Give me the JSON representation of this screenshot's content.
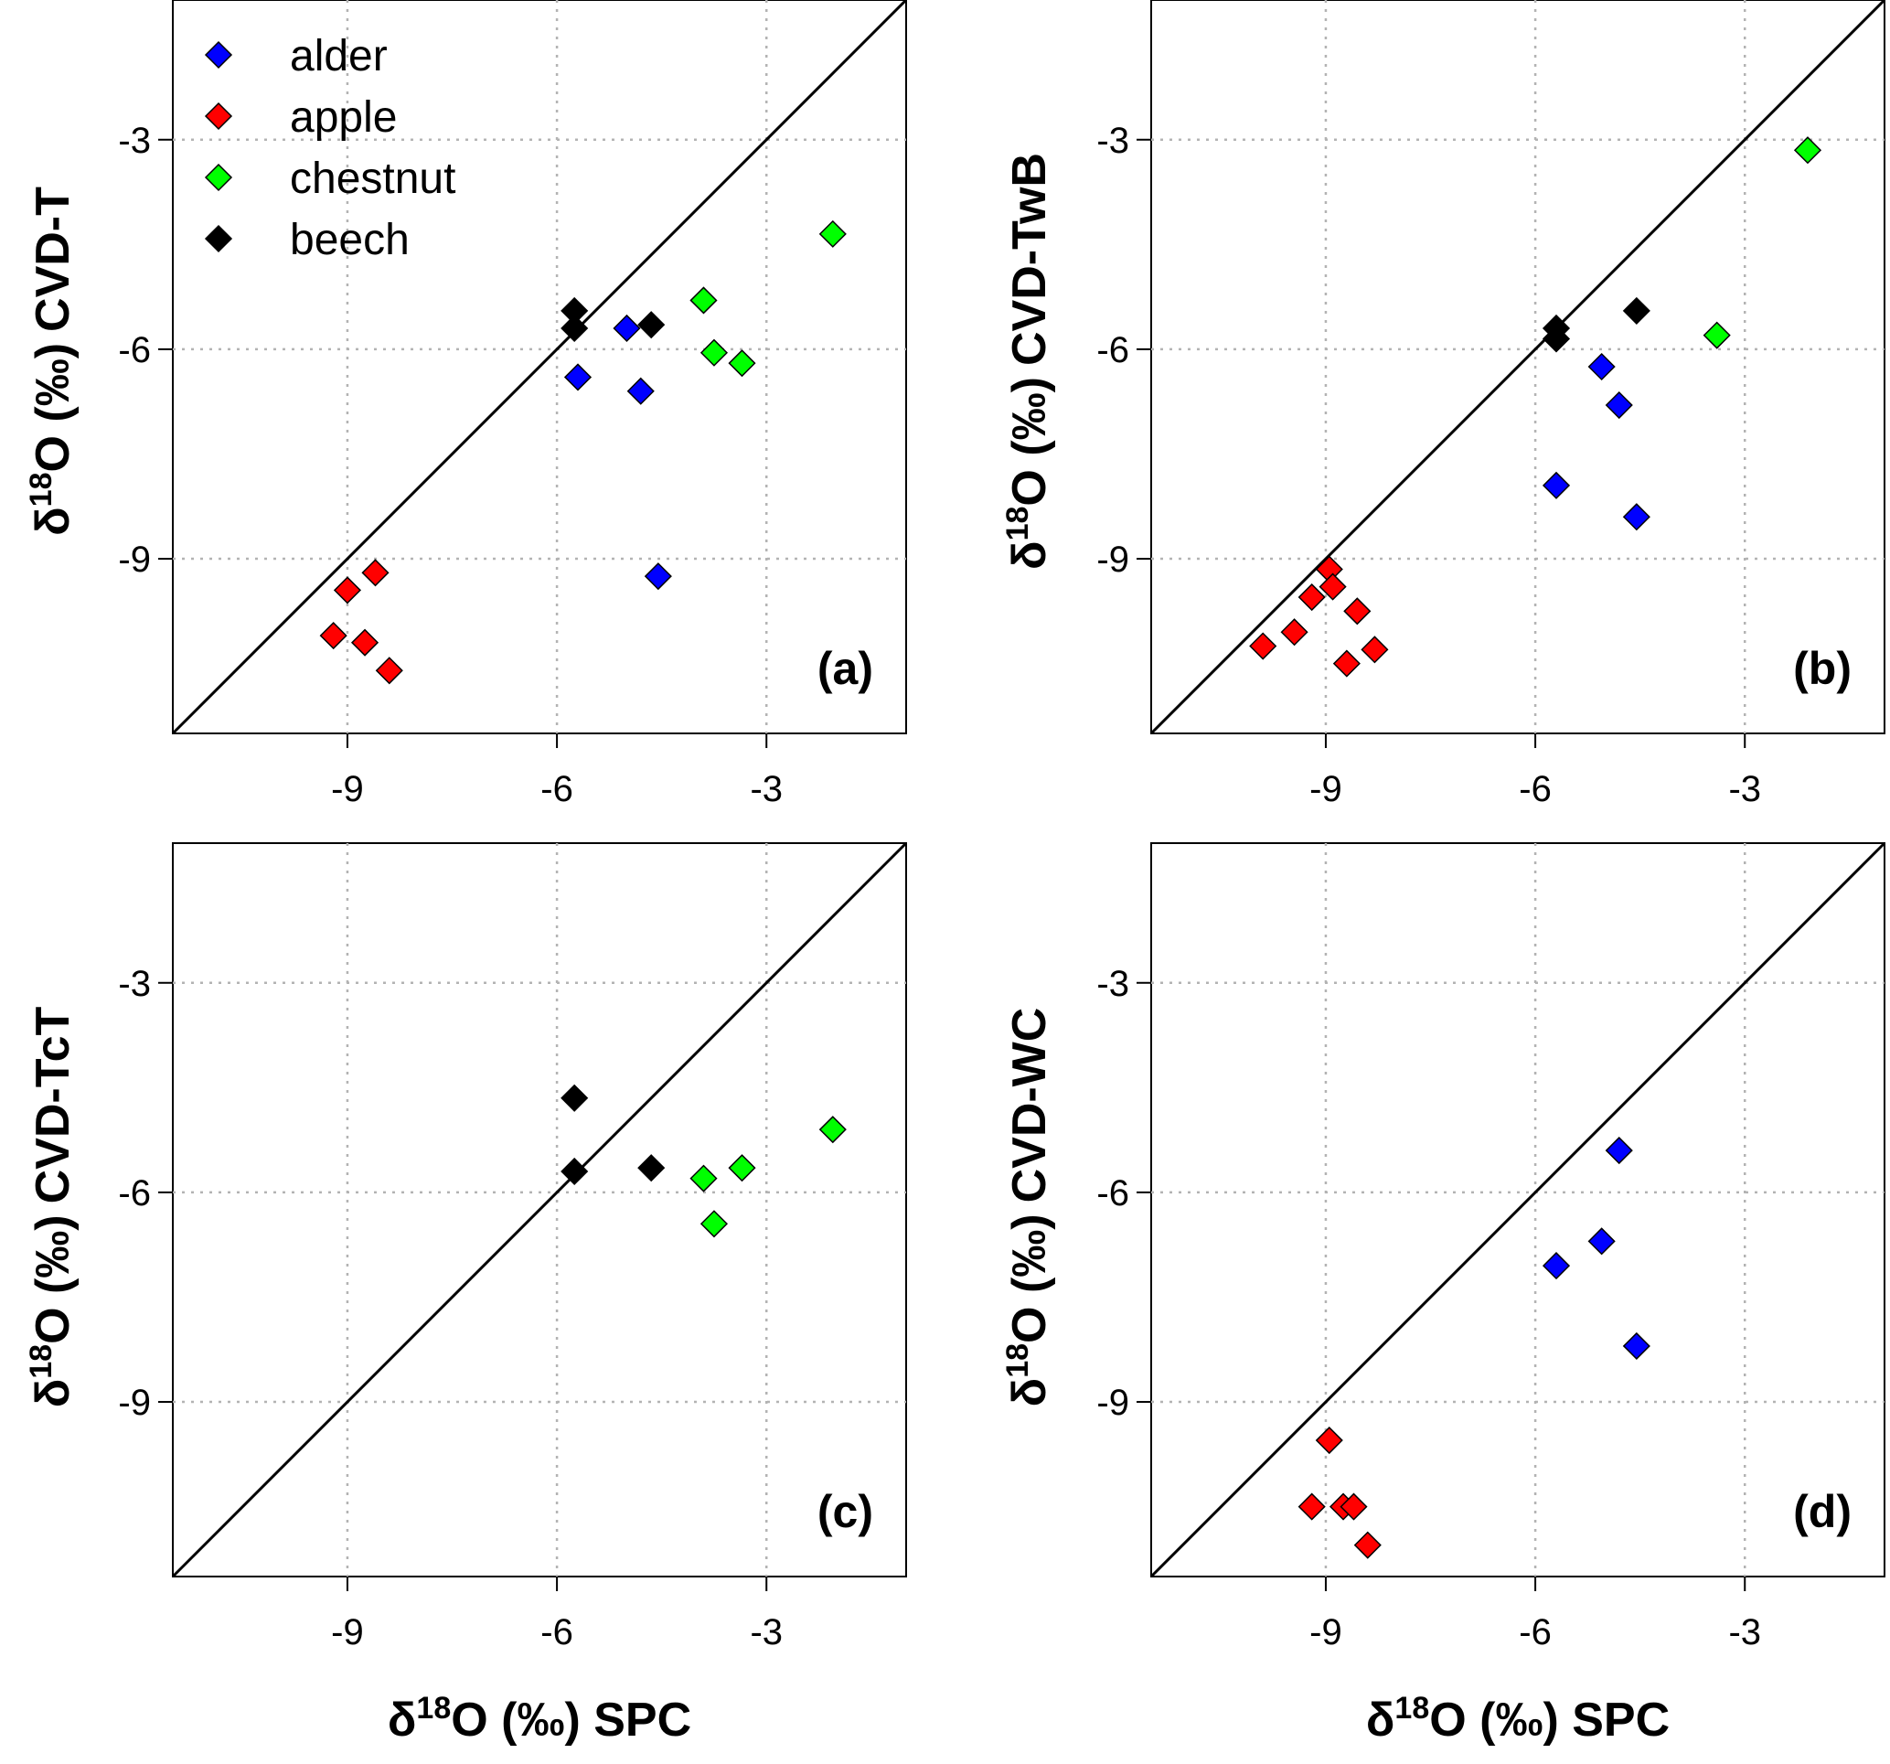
{
  "chart_data": [
    {
      "panel": "(a)",
      "type": "scatter",
      "xlabel": "",
      "ylabel": "δ18O (‰) CVD-T",
      "xlim": [
        -11.5,
        -1
      ],
      "ylim": [
        -11.5,
        -1
      ],
      "xticks": [
        -9,
        -6,
        -3
      ],
      "yticks": [
        -9,
        -6,
        -3
      ],
      "grid": true,
      "reference_line": "1:1",
      "legend": {
        "placement": "top-left",
        "entries": [
          "alder",
          "apple",
          "chestnut",
          "beech"
        ]
      },
      "series": [
        {
          "name": "alder",
          "color": "#0000ff",
          "points": [
            [
              -5.7,
              -6.4
            ],
            [
              -5.0,
              -5.7
            ],
            [
              -4.8,
              -6.6
            ],
            [
              -4.55,
              -9.25
            ]
          ]
        },
        {
          "name": "apple",
          "color": "#ff0000",
          "points": [
            [
              -9.0,
              -9.45
            ],
            [
              -8.6,
              -9.2
            ],
            [
              -9.2,
              -10.1
            ],
            [
              -8.75,
              -10.2
            ],
            [
              -8.4,
              -10.6
            ]
          ]
        },
        {
          "name": "chestnut",
          "color": "#00ff00",
          "points": [
            [
              -3.9,
              -5.3
            ],
            [
              -3.75,
              -6.05
            ],
            [
              -3.35,
              -6.2
            ],
            [
              -2.05,
              -4.35
            ]
          ]
        },
        {
          "name": "beech",
          "color": "#000000",
          "points": [
            [
              -5.75,
              -5.45
            ],
            [
              -5.75,
              -5.7
            ],
            [
              -4.65,
              -5.65
            ]
          ]
        }
      ]
    },
    {
      "panel": "(b)",
      "type": "scatter",
      "xlabel": "",
      "ylabel": "δ18O (‰) CVD-TwB",
      "xlim": [
        -11.5,
        -1
      ],
      "ylim": [
        -11.5,
        -1
      ],
      "xticks": [
        -9,
        -6,
        -3
      ],
      "yticks": [
        -9,
        -6,
        -3
      ],
      "grid": true,
      "reference_line": "1:1",
      "series": [
        {
          "name": "alder",
          "color": "#0000ff",
          "points": [
            [
              -5.05,
              -6.25
            ],
            [
              -4.8,
              -6.8
            ],
            [
              -5.7,
              -7.95
            ],
            [
              -4.55,
              -8.4
            ]
          ]
        },
        {
          "name": "apple",
          "color": "#ff0000",
          "points": [
            [
              -8.95,
              -9.15
            ],
            [
              -8.9,
              -9.4
            ],
            [
              -9.2,
              -9.55
            ],
            [
              -8.55,
              -9.75
            ],
            [
              -9.45,
              -10.05
            ],
            [
              -9.9,
              -10.25
            ],
            [
              -8.3,
              -10.3
            ],
            [
              -8.7,
              -10.5
            ]
          ]
        },
        {
          "name": "chestnut",
          "color": "#00ff00",
          "points": [
            [
              -3.4,
              -5.8
            ],
            [
              -2.1,
              -3.15
            ]
          ]
        },
        {
          "name": "beech",
          "color": "#000000",
          "points": [
            [
              -5.7,
              -5.7
            ],
            [
              -5.7,
              -5.85
            ],
            [
              -4.55,
              -5.45
            ]
          ]
        }
      ]
    },
    {
      "panel": "(c)",
      "type": "scatter",
      "xlabel": "δ18O (‰) SPC",
      "ylabel": "δ18O (‰) CVD-TcT",
      "xlim": [
        -11.5,
        -1
      ],
      "ylim": [
        -11.5,
        -1
      ],
      "xticks": [
        -9,
        -6,
        -3
      ],
      "yticks": [
        -9,
        -6,
        -3
      ],
      "grid": true,
      "reference_line": "1:1",
      "series": [
        {
          "name": "chestnut",
          "color": "#00ff00",
          "points": [
            [
              -3.9,
              -5.8
            ],
            [
              -3.75,
              -6.45
            ],
            [
              -3.35,
              -5.65
            ],
            [
              -2.05,
              -5.1
            ]
          ]
        },
        {
          "name": "beech",
          "color": "#000000",
          "points": [
            [
              -5.75,
              -4.65
            ],
            [
              -5.75,
              -5.7
            ],
            [
              -4.65,
              -5.65
            ]
          ]
        }
      ]
    },
    {
      "panel": "(d)",
      "type": "scatter",
      "xlabel": "δ18O (‰) SPC",
      "ylabel": "δ18O (‰) CVD-WC",
      "xlim": [
        -11.5,
        -1
      ],
      "ylim": [
        -11.5,
        -1
      ],
      "xticks": [
        -9,
        -6,
        -3
      ],
      "yticks": [
        -9,
        -6,
        -3
      ],
      "grid": true,
      "reference_line": "1:1",
      "series": [
        {
          "name": "alder",
          "color": "#0000ff",
          "points": [
            [
              -4.8,
              -5.4
            ],
            [
              -5.05,
              -6.7
            ],
            [
              -5.7,
              -7.05
            ],
            [
              -4.55,
              -8.2
            ]
          ]
        },
        {
          "name": "apple",
          "color": "#ff0000",
          "points": [
            [
              -8.95,
              -9.55
            ],
            [
              -9.2,
              -10.5
            ],
            [
              -8.75,
              -10.5
            ],
            [
              -8.6,
              -10.5
            ],
            [
              -8.4,
              -11.05
            ]
          ]
        }
      ]
    }
  ],
  "labels": {
    "ylabel_prefix": "δ",
    "ylabel_sup": "18",
    "ylabel_unit": "O (‰)",
    "ylabel_a": "CVD-T",
    "ylabel_b": "CVD-TwB",
    "ylabel_c": "CVD-TcT",
    "ylabel_d": "CVD-WC",
    "xlabel_prefix": "δ",
    "xlabel_sup": "18",
    "xlabel_rest": "O (‰) SPC",
    "panel_a": "(a)",
    "panel_b": "(b)",
    "panel_c": "(c)",
    "panel_d": "(d)"
  }
}
